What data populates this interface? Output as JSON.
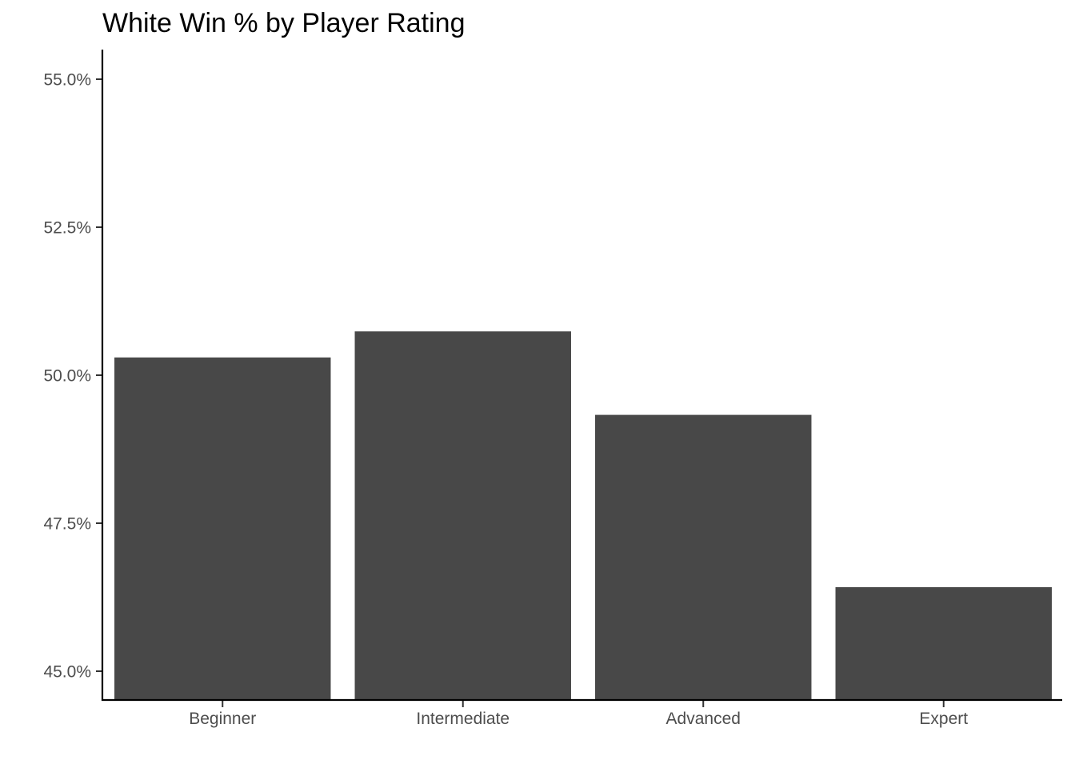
{
  "chart_data": {
    "type": "bar",
    "title": "White Win % by Player Rating",
    "xlabel": "",
    "ylabel": "",
    "categories": [
      "Beginner",
      "Intermediate",
      "Advanced",
      "Expert"
    ],
    "values": [
      50.3,
      50.74,
      49.33,
      46.42
    ],
    "y_unit": "%",
    "ylim": [
      44.5,
      55.5
    ],
    "y_ticks": [
      45.0,
      47.5,
      50.0,
      52.5,
      55.0
    ],
    "y_tick_labels": [
      "45.0%",
      "47.5%",
      "50.0%",
      "52.5%",
      "55.0%"
    ],
    "grid": false,
    "legend": "none",
    "bar_color": "#484848"
  }
}
